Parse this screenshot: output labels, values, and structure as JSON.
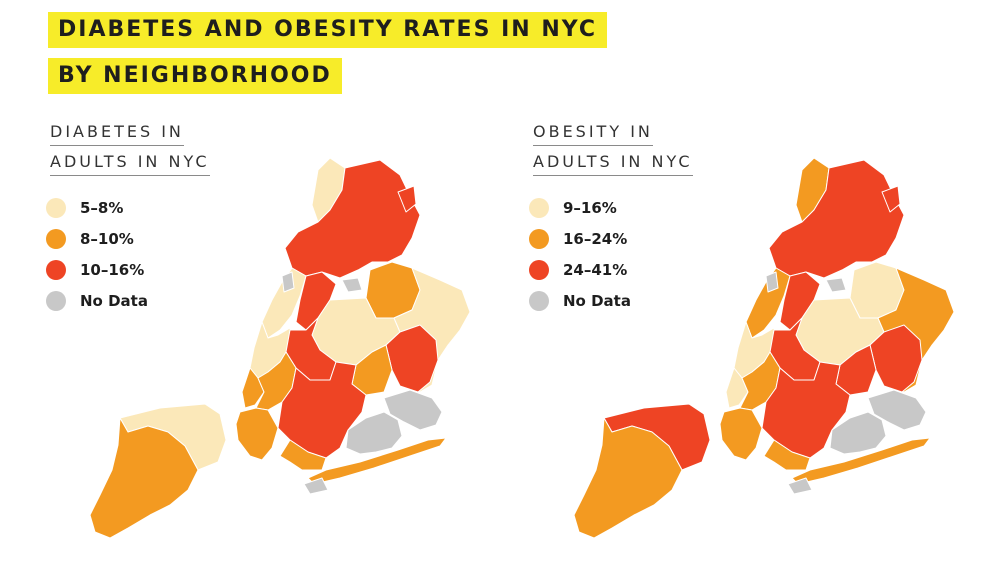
{
  "title": {
    "line1": "DIABETES AND OBESITY RATES IN NYC",
    "line2": "BY NEIGHBORHOOD"
  },
  "colors": {
    "highlight": "#f7ec29",
    "light": "#fbe8b9",
    "medium": "#f39a21",
    "high": "#ee4424",
    "nodata": "#c8c8c8"
  },
  "maps": [
    {
      "id": "diabetes",
      "heading_line1": "DIABETES IN",
      "heading_line2": "ADULTS IN NYC",
      "legend": [
        {
          "label": "5–8%",
          "color": "#fbe8b9"
        },
        {
          "label": "8–10%",
          "color": "#f39a21"
        },
        {
          "label": "10–16%",
          "color": "#ee4424"
        },
        {
          "label": "No Data",
          "color": "#c8c8c8"
        }
      ]
    },
    {
      "id": "obesity",
      "heading_line1": "OBESITY IN",
      "heading_line2": "ADULTS IN NYC",
      "legend": [
        {
          "label": "9–16%",
          "color": "#fbe8b9"
        },
        {
          "label": "16–24%",
          "color": "#f39a21"
        },
        {
          "label": "24–41%",
          "color": "#ee4424"
        },
        {
          "label": "No Data",
          "color": "#c8c8c8"
        }
      ]
    }
  ]
}
